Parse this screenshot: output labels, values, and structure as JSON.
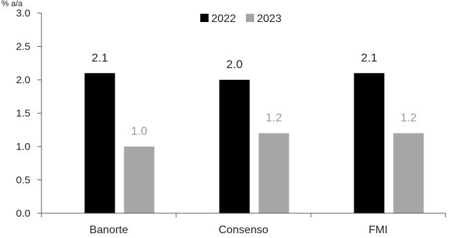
{
  "chart_data": {
    "type": "bar",
    "unit_label": "% a/a",
    "categories": [
      "Banorte",
      "Consenso",
      "FMI"
    ],
    "series": [
      {
        "name": "2022",
        "color": "#000000",
        "label_color": "#222222",
        "values": [
          2.1,
          2.0,
          2.1
        ]
      },
      {
        "name": "2023",
        "color": "#a6a6a6",
        "label_color": "#9a9a9a",
        "values": [
          1.0,
          1.2,
          1.2
        ]
      }
    ],
    "ylim": [
      0,
      3.0
    ],
    "yticks": [
      "0.0",
      "0.5",
      "1.0",
      "1.5",
      "2.0",
      "2.5",
      "3.0"
    ],
    "data_labels": [
      [
        "2.1",
        "2.0",
        "2.1"
      ],
      [
        "1.0",
        "1.2",
        "1.2"
      ]
    ],
    "grid": false,
    "legend_position": "top-center"
  }
}
